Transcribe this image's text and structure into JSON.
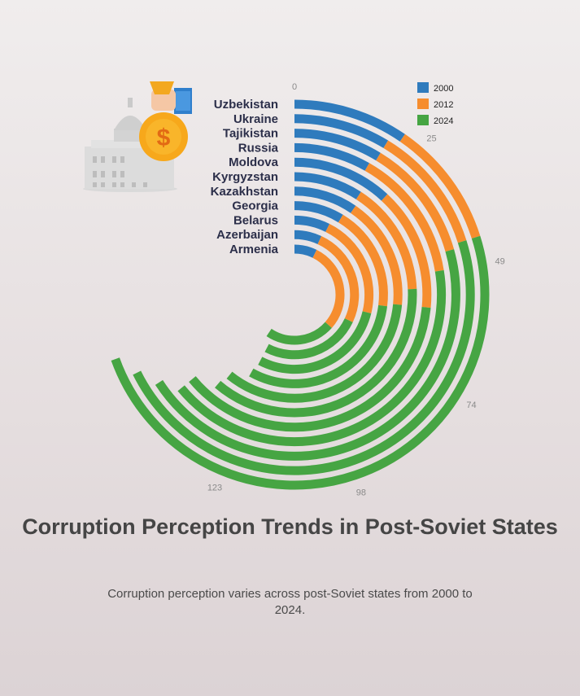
{
  "chart_data": {
    "type": "radial bar",
    "title": "Corruption Perception Trends in Post-Soviet States",
    "subtitle": "Corruption perception varies across post-Soviet states from 2000 to 2024.",
    "categories": [
      "Uzbekistan",
      "Ukraine",
      "Tajikistan",
      "Russia",
      "Moldova",
      "Kyrgyzstan",
      "Kazakhstan",
      "Georgia",
      "Belarus",
      "Azerbaijan",
      "Armenia"
    ],
    "series": [
      {
        "name": "2000",
        "color": "#2f7bbd",
        "values": [
          21,
          19,
          19,
          18,
          26,
          20,
          21,
          19,
          16,
          15,
          16
        ]
      },
      {
        "name": "2012",
        "color": "#f68d2e",
        "values": [
          23,
          25,
          26,
          31,
          32,
          33,
          37,
          40,
          47,
          55,
          64
        ]
      },
      {
        "name": "2024",
        "color": "#46a543",
        "values": [
          108,
          104,
          99,
          91,
          82,
          81,
          75,
          68,
          63,
          56,
          50
        ]
      }
    ],
    "tick_values": [
      0,
      25,
      49,
      74,
      98,
      123
    ],
    "angular_max": 164,
    "legend_position": "top-right"
  }
}
